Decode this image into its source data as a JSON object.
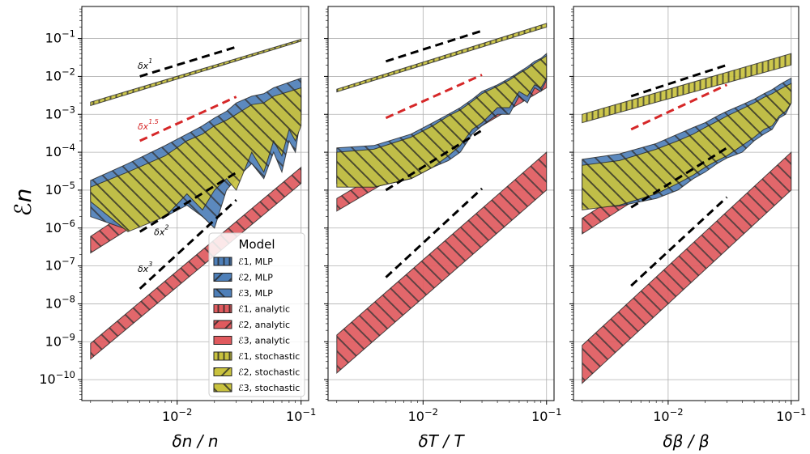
{
  "chart_data": {
    "type": "area",
    "ylabel": "ℰn",
    "ylim": [
      2.8e-11,
      0.7
    ],
    "yticks": [
      {
        "value": 1e-10,
        "label": "10−10"
      },
      {
        "value": 1e-09,
        "label": "10−9"
      },
      {
        "value": 1e-08,
        "label": "10−8"
      },
      {
        "value": 1e-07,
        "label": "10−7"
      },
      {
        "value": 1e-06,
        "label": "10−6"
      },
      {
        "value": 1e-05,
        "label": "10−5"
      },
      {
        "value": 0.0001,
        "label": "10−4"
      },
      {
        "value": 0.001,
        "label": "10−3"
      },
      {
        "value": 0.01,
        "label": "10−2"
      },
      {
        "value": 0.1,
        "label": "10−1"
      }
    ],
    "xticks": [
      {
        "value": 0.01,
        "label": "10−2"
      },
      {
        "value": 0.1,
        "label": "10−1"
      }
    ],
    "legend": {
      "title": "Model",
      "location": "lower-right of first panel",
      "entries": [
        {
          "label": "ℰ1, MLP",
          "color": "#4e7fb8",
          "hatch": "vertical"
        },
        {
          "label": "ℰ2, MLP",
          "color": "#4e7fb8",
          "hatch": "forward"
        },
        {
          "label": "ℰ3, MLP",
          "color": "#4e7fb8",
          "hatch": "backward"
        },
        {
          "label": "ℰ1, analytic",
          "color": "#e05a5e",
          "hatch": "vertical"
        },
        {
          "label": "ℰ2, analytic",
          "color": "#e05a5e",
          "hatch": "forward"
        },
        {
          "label": "ℰ3, analytic",
          "color": "#e05a5e",
          "hatch": "none"
        },
        {
          "label": "ℰ1, stochastic",
          "color": "#c9c23e",
          "hatch": "vertical"
        },
        {
          "label": "ℰ2, stochastic",
          "color": "#c9c23e",
          "hatch": "forward"
        },
        {
          "label": "ℰ3, stochastic",
          "color": "#c9c23e",
          "hatch": "backward"
        }
      ]
    },
    "panels": [
      {
        "xlabel": "δn / n",
        "xlim": [
          0.0017,
          0.115
        ],
        "bands": [
          {
            "name": "analytic",
            "color": "#e05a5e",
            "hatch": "backward",
            "x": [
              0.002,
              0.1
            ],
            "lower": [
              3.5e-10,
              1.5e-05
            ],
            "upper": [
              9e-10,
              4e-05
            ]
          },
          {
            "name": "analytic",
            "color": "#e05a5e",
            "hatch": "backward",
            "x": [
              0.002,
              0.1
            ],
            "lower": [
              2.2e-07,
              0.0007
            ],
            "upper": [
              6e-07,
              0.003
            ]
          },
          {
            "name": "MLP",
            "color": "#4e7fb8",
            "hatch": "backward",
            "x": [
              0.002,
              0.004,
              0.008,
              0.012,
              0.016,
              0.02,
              0.025,
              0.03,
              0.04,
              0.05,
              0.06,
              0.07,
              0.08,
              0.09,
              0.1
            ],
            "lower": [
              2e-06,
              9e-07,
              2e-06,
              4e-06,
              2e-06,
              1e-06,
              1e-05,
              2e-05,
              5e-05,
              2e-05,
              0.0001,
              3e-05,
              0.0002,
              0.0001,
              0.001
            ],
            "upper": [
              1.8e-05,
              5e-05,
              0.00015,
              0.0003,
              0.0005,
              0.0008,
              0.0012,
              0.002,
              0.003,
              0.0035,
              0.005,
              0.006,
              0.007,
              0.008,
              0.009
            ]
          },
          {
            "name": "stochastic",
            "color": "#c9c23e",
            "hatch": "backward",
            "x": [
              0.002,
              0.004,
              0.008,
              0.012,
              0.016,
              0.02,
              0.025,
              0.03,
              0.04,
              0.05,
              0.06,
              0.07,
              0.08,
              0.09,
              0.1
            ],
            "lower": [
              5e-06,
              8e-07,
              2e-06,
              8e-06,
              3e-06,
              1e-05,
              2e-05,
              1e-05,
              0.0001,
              3e-05,
              0.0002,
              8e-05,
              0.0004,
              0.0002,
              0.0005
            ],
            "upper": [
              1.2e-05,
              3e-05,
              8e-05,
              0.0002,
              0.0003,
              0.0005,
              0.0007,
              0.001,
              0.0018,
              0.002,
              0.003,
              0.0035,
              0.004,
              0.0045,
              0.005
            ]
          },
          {
            "name": "stochastic",
            "color": "#c9c23e",
            "hatch": "vertical",
            "x": [
              0.002,
              0.1
            ],
            "lower": [
              0.0017,
              0.085
            ],
            "upper": [
              0.0021,
              0.095
            ]
          }
        ],
        "refs": [
          {
            "label": "δx1",
            "color": "#000000",
            "x": [
              0.005,
              0.03
            ],
            "y": [
              0.01,
              0.06
            ],
            "label_at": [
              0.0048,
              0.016
            ]
          },
          {
            "label": "δx1.5",
            "color": "#d62728",
            "x": [
              0.005,
              0.03
            ],
            "y": [
              0.0002,
              0.0029
            ],
            "label_at": [
              0.0048,
              0.0004
            ]
          },
          {
            "label": "δx2",
            "color": "#000000",
            "x": [
              0.005,
              0.03
            ],
            "y": [
              8e-07,
              2.9e-05
            ],
            "label_at": [
              0.0065,
              6.5e-07
            ]
          },
          {
            "label": "δx3",
            "color": "#000000",
            "x": [
              0.005,
              0.03
            ],
            "y": [
              2.5e-08,
              5.5e-06
            ],
            "label_at": [
              0.0048,
              7e-08
            ]
          }
        ]
      },
      {
        "xlabel": "δT / T",
        "xlim": [
          0.0017,
          0.115
        ],
        "bands": [
          {
            "name": "analytic",
            "color": "#e05a5e",
            "hatch": "backward",
            "x": [
              0.002,
              0.1
            ],
            "lower": [
              1.5e-10,
              1e-05
            ],
            "upper": [
              1.5e-09,
              0.0001
            ]
          },
          {
            "name": "analytic",
            "color": "#e05a5e",
            "hatch": "backward",
            "x": [
              0.002,
              0.1
            ],
            "lower": [
              2.8e-06,
              0.005
            ],
            "upper": [
              6e-06,
              0.012
            ]
          },
          {
            "name": "MLP",
            "color": "#4e7fb8",
            "hatch": "backward",
            "x": [
              0.002,
              0.004,
              0.008,
              0.012,
              0.016,
              0.02,
              0.025,
              0.03,
              0.04,
              0.05,
              0.06,
              0.07,
              0.08,
              0.09,
              0.1
            ],
            "lower": [
              1.5e-05,
              1.2e-05,
              2e-05,
              4e-05,
              6e-05,
              0.0001,
              0.0003,
              0.0005,
              0.001,
              0.001,
              0.003,
              0.002,
              0.005,
              0.004,
              0.008
            ],
            "upper": [
              0.00013,
              0.00015,
              0.0003,
              0.0006,
              0.001,
              0.0015,
              0.0025,
              0.004,
              0.006,
              0.009,
              0.013,
              0.018,
              0.025,
              0.03,
              0.04
            ]
          },
          {
            "name": "stochastic",
            "color": "#c9c23e",
            "hatch": "backward",
            "x": [
              0.002,
              0.004,
              0.008,
              0.012,
              0.016,
              0.02,
              0.025,
              0.03,
              0.04,
              0.05,
              0.06,
              0.07,
              0.08,
              0.09,
              0.1
            ],
            "lower": [
              1.2e-05,
              1.2e-05,
              2e-05,
              4e-05,
              8e-05,
              0.00015,
              0.0004,
              0.0006,
              0.0015,
              0.0015,
              0.004,
              0.003,
              0.006,
              0.005,
              0.009
            ],
            "upper": [
              0.0001,
              0.00012,
              0.00025,
              0.0005,
              0.0009,
              0.0013,
              0.0022,
              0.0035,
              0.0055,
              0.008,
              0.012,
              0.016,
              0.022,
              0.028,
              0.035
            ]
          },
          {
            "name": "stochastic",
            "color": "#c9c23e",
            "hatch": "vertical",
            "x": [
              0.002,
              0.1
            ],
            "lower": [
              0.0039,
              0.2
            ],
            "upper": [
              0.0046,
              0.25
            ]
          }
        ],
        "refs": [
          {
            "label": "",
            "color": "#000000",
            "x": [
              0.005,
              0.03
            ],
            "y": [
              0.025,
              0.16
            ]
          },
          {
            "label": "",
            "color": "#d62728",
            "x": [
              0.005,
              0.03
            ],
            "y": [
              0.0008,
              0.011
            ]
          },
          {
            "label": "",
            "color": "#000000",
            "x": [
              0.005,
              0.03
            ],
            "y": [
              1e-05,
              0.00038
            ]
          },
          {
            "label": "",
            "color": "#000000",
            "x": [
              0.005,
              0.03
            ],
            "y": [
              5e-08,
              1.1e-05
            ]
          }
        ]
      },
      {
        "xlabel": "δβ / β",
        "xlim": [
          0.0017,
          0.115
        ],
        "bands": [
          {
            "name": "analytic",
            "color": "#e05a5e",
            "hatch": "backward",
            "x": [
              0.002,
              0.1
            ],
            "lower": [
              8e-11,
              1e-05
            ],
            "upper": [
              8e-10,
              0.0001
            ]
          },
          {
            "name": "analytic",
            "color": "#e05a5e",
            "hatch": "backward",
            "x": [
              0.002,
              0.1
            ],
            "lower": [
              7e-07,
              0.0024
            ],
            "upper": [
              1.8e-06,
              0.0065
            ]
          },
          {
            "name": "MLP",
            "color": "#4e7fb8",
            "hatch": "backward",
            "x": [
              0.002,
              0.004,
              0.008,
              0.012,
              0.016,
              0.02,
              0.025,
              0.03,
              0.04,
              0.05,
              0.06,
              0.07,
              0.08,
              0.09,
              0.1
            ],
            "lower": [
              3.5e-06,
              3.8e-06,
              6e-06,
              1e-05,
              2e-05,
              3e-05,
              5e-05,
              7e-05,
              0.0001,
              0.0002,
              0.0003,
              0.0004,
              0.0008,
              0.001,
              0.002
            ],
            "upper": [
              6.5e-05,
              9e-05,
              0.00017,
              0.0003,
              0.00045,
              0.0006,
              0.0009,
              0.0012,
              0.0018,
              0.0025,
              0.0035,
              0.0045,
              0.006,
              0.0075,
              0.009
            ]
          },
          {
            "name": "stochastic",
            "color": "#c9c23e",
            "hatch": "backward",
            "x": [
              0.002,
              0.004,
              0.008,
              0.012,
              0.016,
              0.02,
              0.025,
              0.03,
              0.04,
              0.05,
              0.06,
              0.07,
              0.08,
              0.09,
              0.1
            ],
            "lower": [
              3e-06,
              4e-06,
              8e-06,
              1.5e-05,
              2.5e-05,
              4e-05,
              6e-05,
              8e-05,
              0.00015,
              0.00025,
              0.0004,
              0.0005,
              0.0009,
              0.0012,
              0.002
            ],
            "upper": [
              4.5e-05,
              6e-05,
              0.00012,
              0.0002,
              0.0003,
              0.00045,
              0.00065,
              0.0009,
              0.0014,
              0.002,
              0.0028,
              0.0035,
              0.0045,
              0.0055,
              0.0065
            ]
          },
          {
            "name": "stochastic",
            "color": "#c9c23e",
            "hatch": "vertical",
            "x": [
              0.002,
              0.1
            ],
            "lower": [
              0.0006,
              0.02
            ],
            "upper": [
              0.001,
              0.04
            ]
          }
        ],
        "refs": [
          {
            "label": "",
            "color": "#000000",
            "x": [
              0.005,
              0.03
            ],
            "y": [
              0.003,
              0.02
            ]
          },
          {
            "label": "",
            "color": "#d62728",
            "x": [
              0.005,
              0.03
            ],
            "y": [
              0.0004,
              0.006
            ]
          },
          {
            "label": "",
            "color": "#000000",
            "x": [
              0.005,
              0.03
            ],
            "y": [
              3.5e-06,
              0.00013
            ]
          },
          {
            "label": "",
            "color": "#000000",
            "x": [
              0.005,
              0.03
            ],
            "y": [
              3e-08,
              6.5e-06
            ]
          }
        ]
      }
    ]
  }
}
